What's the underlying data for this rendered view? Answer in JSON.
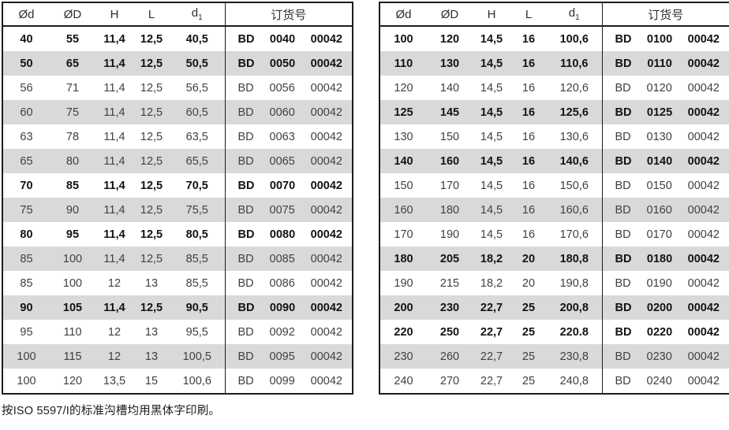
{
  "columns": {
    "c1": "Ød",
    "c2": "ØD",
    "c3": "H",
    "c4": "L",
    "c5_base": "d",
    "c5_sub": "1",
    "order": "订货号"
  },
  "caption": "按ISO 5597/I的标准沟槽均用黑体字印刷。",
  "tables": [
    {
      "rows": [
        {
          "cells": [
            "40",
            "55",
            "11,4",
            "12,5",
            "40,5"
          ],
          "order": [
            "BD",
            "0040",
            "00042"
          ],
          "bold": true
        },
        {
          "cells": [
            "50",
            "65",
            "11,4",
            "12,5",
            "50,5"
          ],
          "order": [
            "BD",
            "0050",
            "00042"
          ],
          "bold": true
        },
        {
          "cells": [
            "56",
            "71",
            "11,4",
            "12,5",
            "56,5"
          ],
          "order": [
            "BD",
            "0056",
            "00042"
          ],
          "bold": false
        },
        {
          "cells": [
            "60",
            "75",
            "11,4",
            "12,5",
            "60,5"
          ],
          "order": [
            "BD",
            "0060",
            "00042"
          ],
          "bold": false
        },
        {
          "cells": [
            "63",
            "78",
            "11,4",
            "12,5",
            "63,5"
          ],
          "order": [
            "BD",
            "0063",
            "00042"
          ],
          "bold": false
        },
        {
          "cells": [
            "65",
            "80",
            "11,4",
            "12,5",
            "65,5"
          ],
          "order": [
            "BD",
            "0065",
            "00042"
          ],
          "bold": false
        },
        {
          "cells": [
            "70",
            "85",
            "11,4",
            "12,5",
            "70,5"
          ],
          "order": [
            "BD",
            "0070",
            "00042"
          ],
          "bold": true
        },
        {
          "cells": [
            "75",
            "90",
            "11,4",
            "12,5",
            "75,5"
          ],
          "order": [
            "BD",
            "0075",
            "00042"
          ],
          "bold": false
        },
        {
          "cells": [
            "80",
            "95",
            "11,4",
            "12,5",
            "80,5"
          ],
          "order": [
            "BD",
            "0080",
            "00042"
          ],
          "bold": true
        },
        {
          "cells": [
            "85",
            "100",
            "11,4",
            "12,5",
            "85,5"
          ],
          "order": [
            "BD",
            "0085",
            "00042"
          ],
          "bold": false
        },
        {
          "cells": [
            "85",
            "100",
            "12",
            "13",
            "85,5"
          ],
          "order": [
            "BD",
            "0086",
            "00042"
          ],
          "bold": false
        },
        {
          "cells": [
            "90",
            "105",
            "11,4",
            "12,5",
            "90,5"
          ],
          "order": [
            "BD",
            "0090",
            "00042"
          ],
          "bold": true
        },
        {
          "cells": [
            "95",
            "110",
            "12",
            "13",
            "95,5"
          ],
          "order": [
            "BD",
            "0092",
            "00042"
          ],
          "bold": false
        },
        {
          "cells": [
            "100",
            "115",
            "12",
            "13",
            "100,5"
          ],
          "order": [
            "BD",
            "0095",
            "00042"
          ],
          "bold": false
        },
        {
          "cells": [
            "100",
            "120",
            "13,5",
            "15",
            "100,6"
          ],
          "order": [
            "BD",
            "0099",
            "00042"
          ],
          "bold": false
        }
      ]
    },
    {
      "rows": [
        {
          "cells": [
            "100",
            "120",
            "14,5",
            "16",
            "100,6"
          ],
          "order": [
            "BD",
            "0100",
            "00042"
          ],
          "bold": true
        },
        {
          "cells": [
            "110",
            "130",
            "14,5",
            "16",
            "110,6"
          ],
          "order": [
            "BD",
            "0110",
            "00042"
          ],
          "bold": true
        },
        {
          "cells": [
            "120",
            "140",
            "14,5",
            "16",
            "120,6"
          ],
          "order": [
            "BD",
            "0120",
            "00042"
          ],
          "bold": false
        },
        {
          "cells": [
            "125",
            "145",
            "14,5",
            "16",
            "125,6"
          ],
          "order": [
            "BD",
            "0125",
            "00042"
          ],
          "bold": true
        },
        {
          "cells": [
            "130",
            "150",
            "14,5",
            "16",
            "130,6"
          ],
          "order": [
            "BD",
            "0130",
            "00042"
          ],
          "bold": false
        },
        {
          "cells": [
            "140",
            "160",
            "14,5",
            "16",
            "140,6"
          ],
          "order": [
            "BD",
            "0140",
            "00042"
          ],
          "bold": true
        },
        {
          "cells": [
            "150",
            "170",
            "14,5",
            "16",
            "150,6"
          ],
          "order": [
            "BD",
            "0150",
            "00042"
          ],
          "bold": false
        },
        {
          "cells": [
            "160",
            "180",
            "14,5",
            "16",
            "160,6"
          ],
          "order": [
            "BD",
            "0160",
            "00042"
          ],
          "bold": false
        },
        {
          "cells": [
            "170",
            "190",
            "14,5",
            "16",
            "170,6"
          ],
          "order": [
            "BD",
            "0170",
            "00042"
          ],
          "bold": false
        },
        {
          "cells": [
            "180",
            "205",
            "18,2",
            "20",
            "180,8"
          ],
          "order": [
            "BD",
            "0180",
            "00042"
          ],
          "bold": true
        },
        {
          "cells": [
            "190",
            "215",
            "18,2",
            "20",
            "190,8"
          ],
          "order": [
            "BD",
            "0190",
            "00042"
          ],
          "bold": false
        },
        {
          "cells": [
            "200",
            "230",
            "22,7",
            "25",
            "200,8"
          ],
          "order": [
            "BD",
            "0200",
            "00042"
          ],
          "bold": true
        },
        {
          "cells": [
            "220",
            "250",
            "22,7",
            "25",
            "220.8"
          ],
          "order": [
            "BD",
            "0220",
            "00042"
          ],
          "bold": true
        },
        {
          "cells": [
            "230",
            "260",
            "22,7",
            "25",
            "230,8"
          ],
          "order": [
            "BD",
            "0230",
            "00042"
          ],
          "bold": false
        },
        {
          "cells": [
            "240",
            "270",
            "22,7",
            "25",
            "240,8"
          ],
          "order": [
            "BD",
            "0240",
            "00042"
          ],
          "bold": false
        }
      ]
    }
  ]
}
